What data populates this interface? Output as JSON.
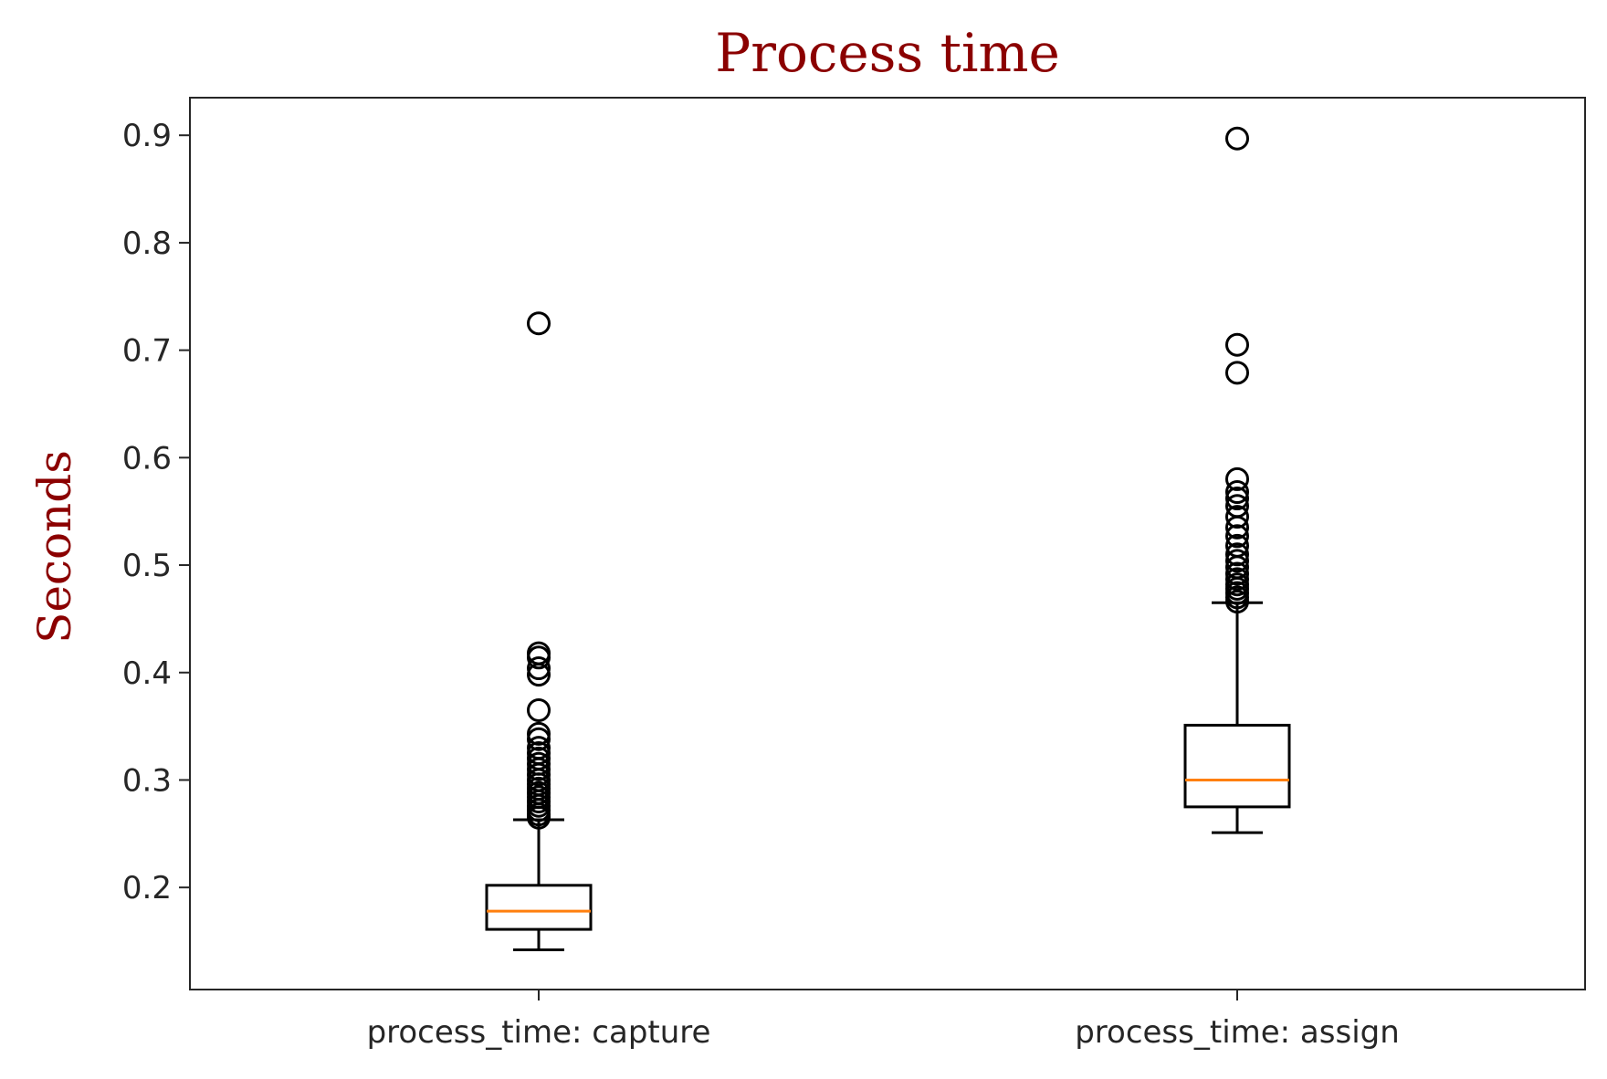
{
  "chart_data": {
    "type": "boxplot",
    "title": "Process time",
    "xlabel": "",
    "ylabel": "Seconds",
    "ylim": [
      0.105,
      0.935
    ],
    "yticks": [
      0.2,
      0.3,
      0.4,
      0.5,
      0.6,
      0.7,
      0.8,
      0.9
    ],
    "ytick_labels": [
      "0.2",
      "0.3",
      "0.4",
      "0.5",
      "0.6",
      "0.7",
      "0.8",
      "0.9"
    ],
    "grid": false,
    "legend": "none",
    "categories": [
      "process_time: capture",
      "process_time: assign"
    ],
    "boxes": [
      {
        "category": "process_time: capture",
        "whisker_low": 0.142,
        "q1": 0.161,
        "median": 0.178,
        "q3": 0.202,
        "whisker_high": 0.263,
        "outliers": [
          0.725,
          0.418,
          0.414,
          0.404,
          0.398,
          0.365,
          0.343,
          0.338,
          0.33,
          0.325,
          0.32,
          0.315,
          0.31,
          0.305,
          0.3,
          0.296,
          0.292,
          0.288,
          0.284,
          0.28,
          0.276,
          0.272,
          0.268,
          0.265
        ]
      },
      {
        "category": "process_time: assign",
        "whisker_low": 0.251,
        "q1": 0.275,
        "median": 0.3,
        "q3": 0.351,
        "whisker_high": 0.465,
        "outliers": [
          0.897,
          0.705,
          0.679,
          0.58,
          0.568,
          0.562,
          0.555,
          0.545,
          0.535,
          0.527,
          0.518,
          0.51,
          0.504,
          0.498,
          0.492,
          0.487,
          0.482,
          0.478,
          0.474,
          0.47,
          0.466
        ]
      }
    ],
    "colors": {
      "title": "#8b0000",
      "ylabel": "#8b0000",
      "box": "#000000",
      "median": "#ff7f0e",
      "tick_text": "#262626",
      "axes": "#262626"
    }
  }
}
